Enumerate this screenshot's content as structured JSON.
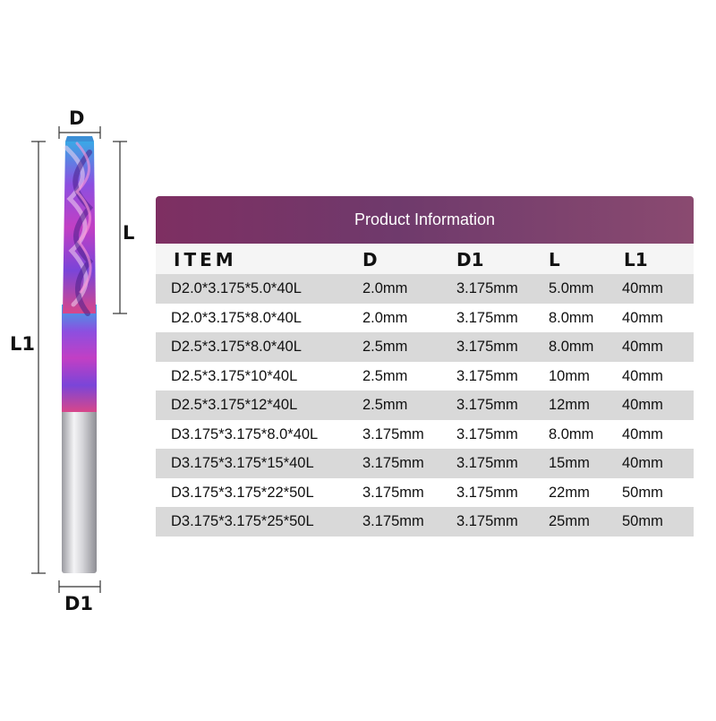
{
  "diagram": {
    "labels": {
      "d": "D",
      "l": "L",
      "l1": "L1",
      "d1": "D1"
    },
    "colors": {
      "shank": "#c8c8cc",
      "flute": "#8a3fcf",
      "dim_line": "#333333"
    }
  },
  "table": {
    "title": "Product Information",
    "headers": {
      "item": "ITEM",
      "d": "D",
      "d1": "D1",
      "l": "L",
      "l1": "L1"
    },
    "rows": [
      {
        "item": "D2.0*3.175*5.0*40L",
        "d": "2.0mm",
        "d1": "3.175mm",
        "l": "5.0mm",
        "l1": "40mm"
      },
      {
        "item": "D2.0*3.175*8.0*40L",
        "d": "2.0mm",
        "d1": "3.175mm",
        "l": "8.0mm",
        "l1": "40mm"
      },
      {
        "item": "D2.5*3.175*8.0*40L",
        "d": "2.5mm",
        "d1": "3.175mm",
        "l": "8.0mm",
        "l1": "40mm"
      },
      {
        "item": "D2.5*3.175*10*40L",
        "d": "2.5mm",
        "d1": "3.175mm",
        "l": "10mm",
        "l1": "40mm"
      },
      {
        "item": "D2.5*3.175*12*40L",
        "d": "2.5mm",
        "d1": "3.175mm",
        "l": "12mm",
        "l1": "40mm"
      },
      {
        "item": "D3.175*3.175*8.0*40L",
        "d": "3.175mm",
        "d1": "3.175mm",
        "l": "8.0mm",
        "l1": "40mm"
      },
      {
        "item": "D3.175*3.175*15*40L",
        "d": "3.175mm",
        "d1": "3.175mm",
        "l": "15mm",
        "l1": "40mm"
      },
      {
        "item": "D3.175*3.175*22*50L",
        "d": "3.175mm",
        "d1": "3.175mm",
        "l": "22mm",
        "l1": "50mm"
      },
      {
        "item": "D3.175*3.175*25*50L",
        "d": "3.175mm",
        "d1": "3.175mm",
        "l": "25mm",
        "l1": "50mm"
      }
    ],
    "colors": {
      "header_start": "#7e2f62",
      "header_end": "#8a4a70",
      "row_shaded": "#d9d9d9",
      "row_plain": "#ffffff"
    }
  }
}
